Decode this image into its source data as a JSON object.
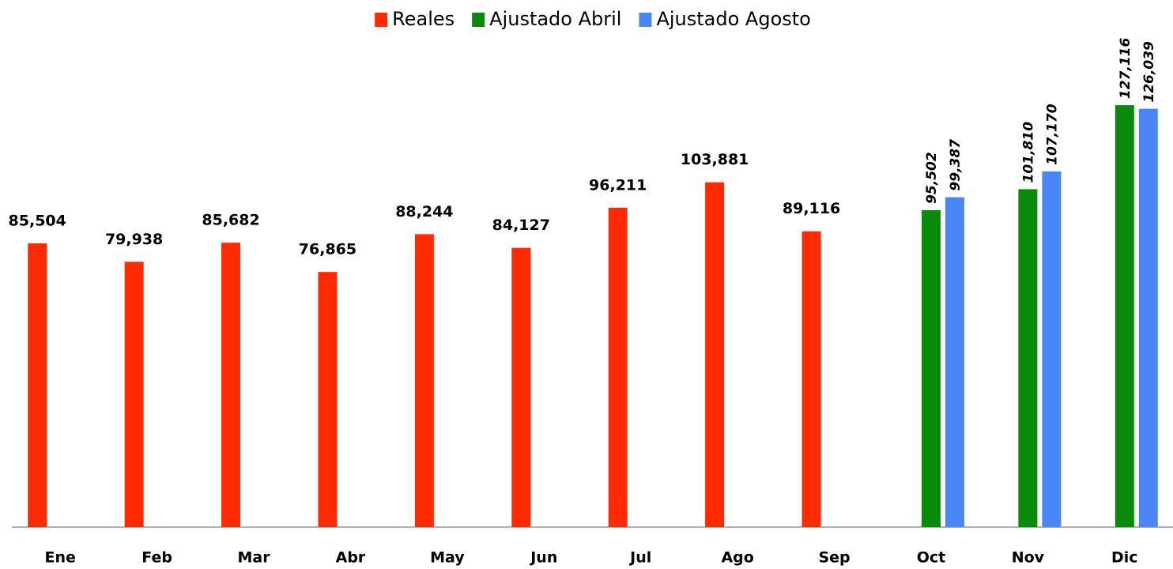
{
  "chart_data": {
    "type": "bar",
    "categories": [
      "Ene",
      "Feb",
      "Mar",
      "Abr",
      "May",
      "Jun",
      "Jul",
      "Ago",
      "Sep",
      "Oct",
      "Nov",
      "Dic"
    ],
    "series": [
      {
        "name": "Reales",
        "color": "#ff2a00",
        "values": [
          85504,
          79938,
          85682,
          76865,
          88244,
          84127,
          96211,
          103881,
          89116,
          null,
          null,
          null
        ],
        "value_labels": [
          "85,504",
          "79,938",
          "85,682",
          "76,865",
          "88,244",
          "84,127",
          "96,211",
          "103,881",
          "89,116",
          null,
          null,
          null
        ]
      },
      {
        "name": "Ajustado Abril",
        "color": "#0a8a0a",
        "values": [
          null,
          null,
          null,
          null,
          null,
          null,
          null,
          null,
          null,
          95502,
          101810,
          127116
        ],
        "value_labels": [
          null,
          null,
          null,
          null,
          null,
          null,
          null,
          null,
          null,
          "95,502",
          "101,810",
          "127,116"
        ]
      },
      {
        "name": "Ajustado Agosto",
        "color": "#4a86f5",
        "values": [
          null,
          null,
          null,
          null,
          null,
          null,
          null,
          null,
          null,
          99387,
          107170,
          126039
        ],
        "value_labels": [
          null,
          null,
          null,
          null,
          null,
          null,
          null,
          null,
          null,
          "99,387",
          "107,170",
          "126,039"
        ]
      }
    ],
    "ylim": [
      0,
      140000
    ]
  }
}
